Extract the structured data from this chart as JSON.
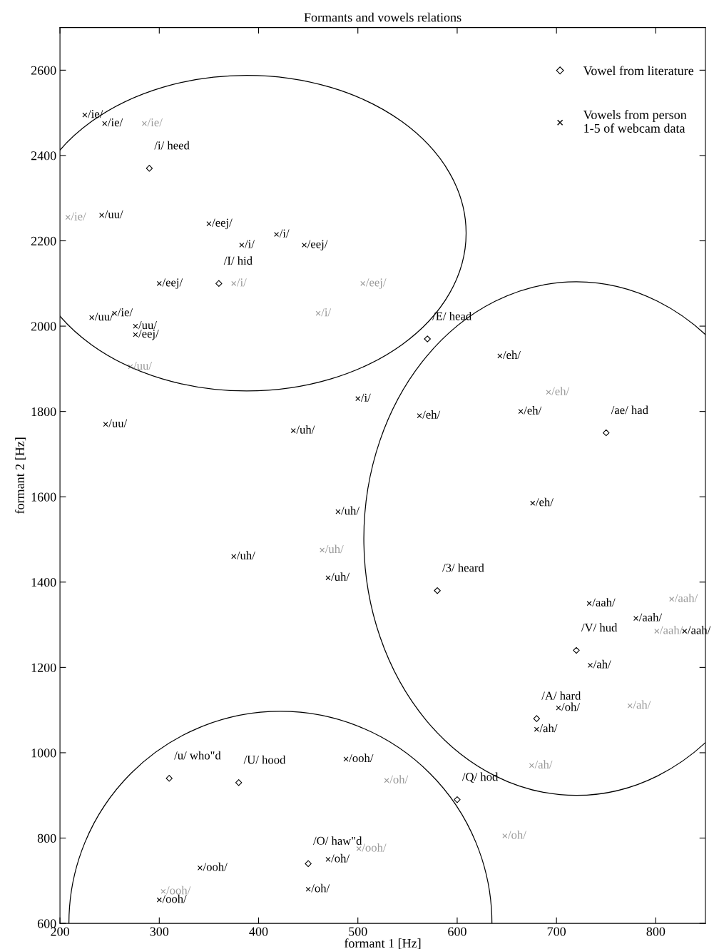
{
  "chart_data": {
    "type": "scatter",
    "title": "Formants and vowels relations",
    "xlabel": "formant 1 [Hz]",
    "ylabel": "formant 2 [Hz]",
    "xlim": [
      200,
      850
    ],
    "ylim": [
      600,
      2700
    ],
    "xticks": [
      200,
      300,
      400,
      500,
      600,
      700,
      800
    ],
    "yticks": [
      600,
      800,
      1000,
      1200,
      1400,
      1600,
      1800,
      2000,
      2200,
      2400,
      2600
    ],
    "grid": false,
    "legend": "top right",
    "annotations": [
      {
        "text": "/i/ heed",
        "x": 290,
        "y": 2370
      },
      {
        "text": "/I/ hid",
        "x": 360,
        "y": 2100
      },
      {
        "text": "/E/ head",
        "x": 570,
        "y": 1970
      },
      {
        "text": "/ae/ had",
        "x": 750,
        "y": 1750
      },
      {
        "text": "/3/ heard",
        "x": 580,
        "y": 1380
      },
      {
        "text": "/V/ hud",
        "x": 720,
        "y": 1240
      },
      {
        "text": "/A/ hard",
        "x": 680,
        "y": 1080
      },
      {
        "text": "/u/ who\"d",
        "x": 310,
        "y": 940
      },
      {
        "text": "/U/ hood",
        "x": 380,
        "y": 930
      },
      {
        "text": "/Q/ hod",
        "x": 600,
        "y": 890
      },
      {
        "text": "/O/ haw\"d",
        "x": 450,
        "y": 740
      }
    ],
    "series": [
      {
        "name": "Vowel from literature",
        "color": "#000000",
        "marker": "diamond",
        "x": [
          290,
          360,
          570,
          750,
          580,
          720,
          680,
          310,
          380,
          600,
          450
        ],
        "values": [
          2370,
          2100,
          1970,
          1750,
          1380,
          1240,
          1080,
          940,
          930,
          890,
          740
        ]
      },
      {
        "name": "Vowels from person\n1-5 of webcam data",
        "color": "#000000",
        "marker": "cross",
        "x": [
          225,
          245,
          285,
          208,
          242,
          350,
          383,
          418,
          446,
          300,
          375,
          505,
          460,
          232,
          255,
          276,
          276,
          271,
          246,
          500,
          435,
          643,
          692,
          562,
          664,
          676,
          480,
          464,
          375,
          470,
          733,
          816,
          780,
          801,
          829,
          734,
          702,
          774,
          680,
          675,
          488,
          529,
          648,
          501,
          470,
          450,
          341,
          304,
          300
        ],
        "values": [
          2495,
          2475,
          2475,
          2255,
          2260,
          2240,
          2190,
          2215,
          2190,
          2100,
          2100,
          2100,
          2030,
          2020,
          2030,
          2000,
          1980,
          1905,
          1770,
          1830,
          1755,
          1930,
          1845,
          1790,
          1800,
          1585,
          1565,
          1475,
          1460,
          1410,
          1350,
          1360,
          1315,
          1285,
          1285,
          1205,
          1105,
          1110,
          1055,
          970,
          985,
          935,
          805,
          775,
          750,
          680,
          730,
          675,
          655
        ],
        "colors": [
          "#000000",
          "#000000",
          "#999999",
          "#999999",
          "#000000",
          "#000000",
          "#000000",
          "#000000",
          "#000000",
          "#000000",
          "#999999",
          "#999999",
          "#999999",
          "#000000",
          "#000000",
          "#000000",
          "#000000",
          "#999999",
          "#000000",
          "#000000",
          "#000000",
          "#000000",
          "#999999",
          "#000000",
          "#000000",
          "#000000",
          "#000000",
          "#999999",
          "#000000",
          "#000000",
          "#000000",
          "#999999",
          "#000000",
          "#999999",
          "#000000",
          "#000000",
          "#000000",
          "#999999",
          "#000000",
          "#999999",
          "#000000",
          "#999999",
          "#999999",
          "#999999",
          "#000000",
          "#000000",
          "#000000",
          "#999999",
          "#000000"
        ],
        "value_labels": [
          "/ie/",
          "/ie/",
          "/ie/",
          "/ie/",
          "/uu/",
          "/eej/",
          "/i/",
          "/i/",
          "/eej/",
          "/eej/",
          "/i/",
          "/eej/",
          "/i/",
          "/uu/",
          "/ie/",
          "/uu/",
          "/eej/",
          "/uu/",
          "/uu/",
          "/i/",
          "/uh/",
          "/eh/",
          "/eh/",
          "/eh/",
          "/eh/",
          "/eh/",
          "/uh/",
          "/uh/",
          "/uh/",
          "/uh/",
          "/aah/",
          "/aah/",
          "/aah/",
          "/aah/",
          "/aah/",
          "/ah/",
          "/oh/",
          "/ah/",
          "/ah/",
          "/ah/",
          "/ooh/",
          "/oh/",
          "/oh/",
          "/ooh/",
          "/oh/",
          "/oh/",
          "/ooh/",
          "/ooh/",
          "/ooh/"
        ]
      }
    ]
  }
}
